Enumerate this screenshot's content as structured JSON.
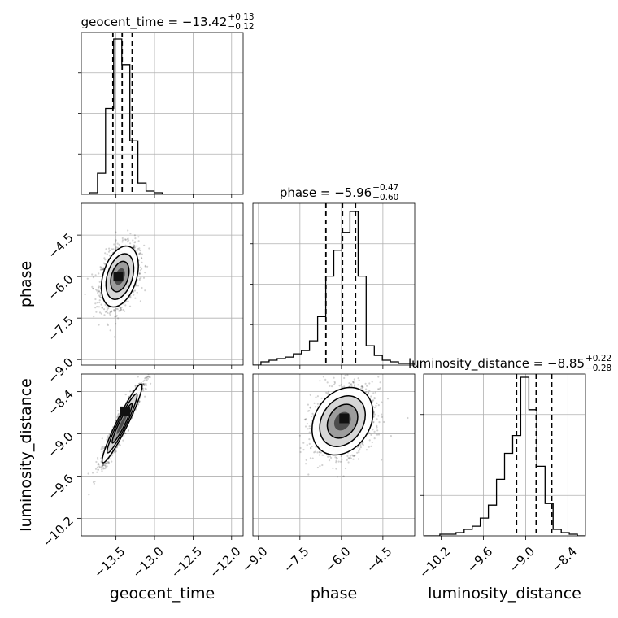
{
  "chart_data": {
    "type": "corner",
    "parameters": [
      {
        "name": "geocent_time",
        "label": "geocent_time",
        "title": {
          "main": "geocent_time = −13.42",
          "plus": "+0.13",
          "minus": "−0.12"
        },
        "median": -13.42,
        "quantiles": [
          -13.54,
          -13.42,
          -13.29
        ],
        "range": [
          -13.95,
          -11.85
        ],
        "ticks": [
          -13.5,
          -13.0,
          -12.5,
          -12.0
        ],
        "tick_labels": [
          "−13.5",
          "−13.0",
          "−12.5",
          "−12.0"
        ],
        "hist": {
          "start": -13.95,
          "step": 0.105,
          "counts": [
            0.0,
            0.01,
            0.13,
            0.53,
            0.96,
            0.8,
            0.33,
            0.07,
            0.02,
            0.01,
            0.0
          ]
        }
      },
      {
        "name": "phase",
        "label": "phase",
        "title": {
          "main": "phase = −5.96",
          "plus": "+0.47",
          "minus": "−0.60"
        },
        "median": -5.96,
        "quantiles": [
          -6.56,
          -5.96,
          -5.49
        ],
        "range": [
          -9.2,
          -3.35
        ],
        "ticks": [
          -9.0,
          -7.5,
          -6.0,
          -4.5
        ],
        "tick_labels": [
          "−9.0",
          "−7.5",
          "−6.0",
          "−4.5"
        ],
        "hist": {
          "start": -9.2,
          "step": 0.2925,
          "counts": [
            0.0,
            0.02,
            0.03,
            0.04,
            0.05,
            0.07,
            0.09,
            0.15,
            0.3,
            0.55,
            0.71,
            0.82,
            0.95,
            0.55,
            0.12,
            0.06,
            0.03,
            0.02,
            0.01,
            0.01
          ]
        }
      },
      {
        "name": "luminosity_distance",
        "label": "luminosity_distance",
        "title": {
          "main": "luminosity_distance = −8.85",
          "plus": "+0.22",
          "minus": "−0.28"
        },
        "median": -8.85,
        "quantiles": [
          -9.13,
          -8.85,
          -8.63
        ],
        "range": [
          -10.45,
          -8.15
        ],
        "ticks": [
          -10.2,
          -9.6,
          -9.0,
          -8.4
        ],
        "tick_labels": [
          "−10.2",
          "−9.6",
          "−9.0",
          "−8.4"
        ],
        "hist": {
          "start": -10.45,
          "step": 0.115,
          "counts": [
            0.0,
            0.0,
            0.01,
            0.01,
            0.02,
            0.04,
            0.06,
            0.11,
            0.19,
            0.35,
            0.51,
            0.62,
            0.98,
            0.78,
            0.43,
            0.2,
            0.04,
            0.02,
            0.01,
            0.0
          ]
        }
      }
    ],
    "pairs": [
      {
        "x": "geocent_time",
        "y": "phase",
        "center": [
          -13.45,
          -6.0
        ],
        "sd": [
          0.12,
          0.55
        ],
        "rho": 0.35,
        "n": 1500,
        "mode": [
          -13.47,
          -6.0
        ]
      },
      {
        "x": "geocent_time",
        "y": "luminosity_distance",
        "center": [
          -13.42,
          -8.85
        ],
        "sd": [
          0.13,
          0.28
        ],
        "rho": 0.95,
        "n": 1500,
        "mode": [
          -13.38,
          -8.68
        ]
      },
      {
        "x": "phase",
        "y": "luminosity_distance",
        "center": [
          -5.96,
          -8.82
        ],
        "sd": [
          0.55,
          0.24
        ],
        "rho": 0.25,
        "n": 1500,
        "mode": [
          -5.9,
          -8.78
        ]
      }
    ],
    "colors": {
      "hist": "#000000",
      "scatter": "#000000",
      "grid": "#b0b0b0"
    },
    "grid": true
  }
}
